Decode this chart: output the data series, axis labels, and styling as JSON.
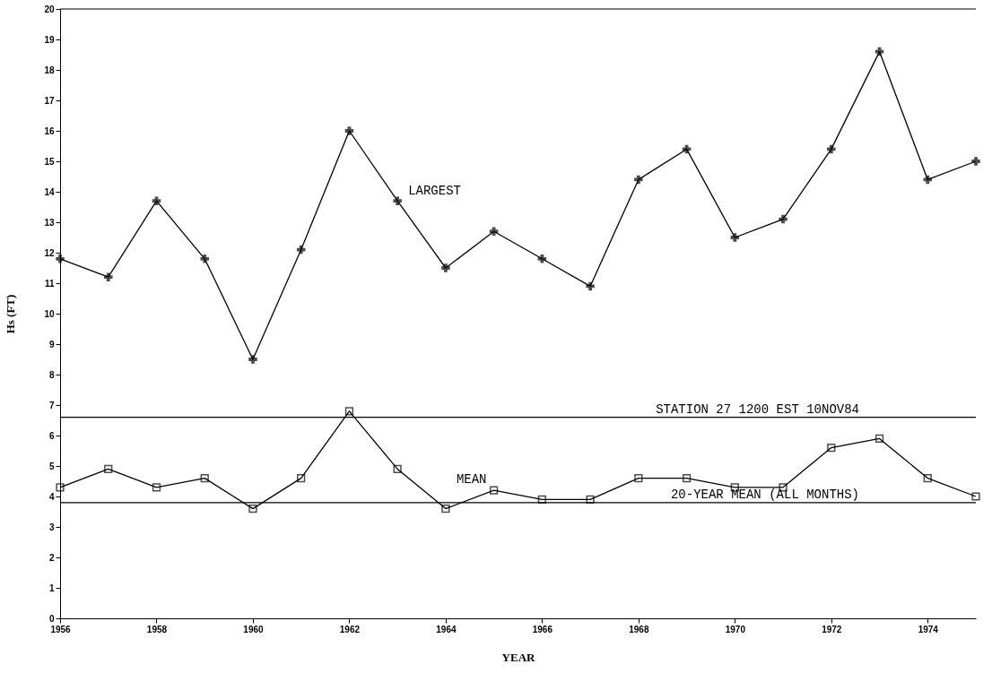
{
  "chart_data": {
    "type": "line",
    "xlabel": "YEAR",
    "ylabel": "Hs (FT)",
    "x": [
      1956,
      1957,
      1958,
      1959,
      1960,
      1961,
      1962,
      1963,
      1964,
      1965,
      1966,
      1967,
      1968,
      1969,
      1970,
      1971,
      1972,
      1973,
      1974,
      1975
    ],
    "series": [
      {
        "name": "LARGEST",
        "color": "#000000",
        "marker": "cross",
        "values": [
          11.8,
          11.2,
          13.7,
          11.8,
          8.5,
          12.1,
          16.0,
          13.7,
          11.5,
          12.7,
          11.8,
          10.9,
          14.4,
          15.4,
          12.5,
          13.1,
          15.4,
          18.6,
          14.4,
          15.0
        ]
      },
      {
        "name": "MEAN",
        "color": "#000000",
        "marker": "square",
        "values": [
          4.3,
          4.9,
          4.3,
          4.6,
          3.6,
          4.6,
          6.8,
          4.9,
          3.6,
          4.2,
          3.9,
          3.9,
          4.6,
          4.6,
          4.3,
          4.3,
          5.6,
          5.9,
          4.6,
          4.0
        ]
      }
    ],
    "xlim": [
      1956,
      1975
    ],
    "xticks": [
      1956,
      1958,
      1960,
      1962,
      1964,
      1966,
      1968,
      1970,
      1972,
      1974
    ],
    "ylim": [
      0,
      20
    ],
    "yticks": [
      0,
      1,
      2,
      3,
      4,
      5,
      6,
      7,
      8,
      9,
      10,
      11,
      12,
      13,
      14,
      15,
      16,
      17,
      18,
      19,
      20
    ],
    "ref_lines": [
      {
        "axis": "y",
        "value": 6.6,
        "label": "STATION 27 1200 EST 10NOV84"
      },
      {
        "axis": "y",
        "value": 3.8,
        "label": "20-YEAR MEAN (ALL MONTHS)"
      }
    ],
    "grid": false,
    "line_style": "solid"
  }
}
